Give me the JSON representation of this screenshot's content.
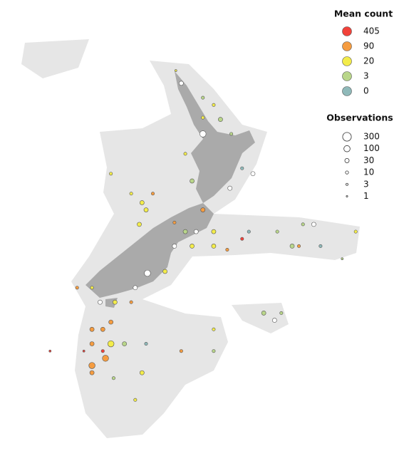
{
  "chart_data": {
    "type": "bubble_map",
    "xlim": [
      159.8,
      189.3
    ],
    "ylim": [
      -55.7,
      -30.5
    ],
    "color_legend": {
      "title": "Mean count",
      "levels": [
        405,
        90,
        20,
        3,
        0
      ],
      "colors": [
        "#f2423a",
        "#f59c40",
        "#f3ec4a",
        "#b9d68a",
        "#8fb9b9"
      ]
    },
    "size_legend": {
      "title": "Observations",
      "levels": [
        300,
        100,
        30,
        10,
        3,
        1
      ]
    },
    "lon": [
      172.8,
      173.2,
      174.8,
      175.6,
      176.1,
      174.8,
      174.8,
      176.9,
      177.7,
      178.5,
      176.8,
      173.5,
      174.0,
      168.0,
      169.5,
      170.3,
      170.6,
      170.1,
      171.1,
      174.8,
      173.5,
      174.3,
      175.6,
      178.2,
      180.3,
      182.2,
      183.0,
      186.1,
      172.7,
      174.0,
      175.6,
      176.6,
      181.4,
      181.9,
      183.5,
      185.1,
      170.7,
      172.0,
      169.8,
      165.5,
      166.6,
      168.3,
      169.5,
      167.2,
      179.3,
      180.1,
      180.6,
      166.6,
      167.4,
      168.0,
      166.6,
      168.0,
      169.0,
      170.6,
      166.6,
      167.6,
      166.6,
      163.5,
      166.0,
      170.3,
      168.2,
      169.8,
      175.6,
      175.6,
      173.2,
      167.4,
      172.7,
      177.7
    ],
    "lat": [
      -34.4,
      -35.1,
      -35.9,
      -36.3,
      -37.1,
      -37.9,
      -37.0,
      -37.9,
      -39.8,
      -40.1,
      -40.9,
      -39.0,
      -40.5,
      -40.1,
      -41.2,
      -41.7,
      -42.1,
      -42.9,
      -41.2,
      -42.1,
      -43.3,
      -43.3,
      -43.3,
      -43.3,
      -43.3,
      -42.9,
      -42.9,
      -43.3,
      -44.1,
      -44.1,
      -44.1,
      -44.3,
      -44.1,
      -44.1,
      -44.1,
      -44.8,
      -45.6,
      -45.5,
      -46.4,
      -46.4,
      -46.4,
      -47.2,
      -47.2,
      -47.2,
      -47.8,
      -48.2,
      -47.8,
      -48.7,
      -48.7,
      -48.3,
      -49.5,
      -49.5,
      -49.5,
      -49.5,
      -50.7,
      -50.3,
      -51.1,
      -49.9,
      -49.9,
      -51.1,
      -51.4,
      -52.6,
      -48.7,
      -49.9,
      -49.9,
      -49.9,
      -42.8,
      -43.7
    ],
    "mean": [
      20,
      0,
      3,
      20,
      3,
      0,
      20,
      3,
      0,
      0,
      0,
      20,
      3,
      20,
      20,
      20,
      20,
      20,
      90,
      90,
      3,
      0,
      20,
      0,
      3,
      3,
      0,
      20,
      0,
      20,
      20,
      90,
      3,
      90,
      0,
      3,
      0,
      20,
      0,
      90,
      20,
      20,
      90,
      0,
      3,
      0,
      3,
      90,
      90,
      90,
      90,
      20,
      3,
      0,
      90,
      90,
      90,
      405,
      405,
      20,
      3,
      20,
      20,
      3,
      90,
      405,
      90,
      405
    ],
    "obs": [
      3,
      30,
      10,
      10,
      30,
      100,
      10,
      10,
      10,
      30,
      30,
      10,
      30,
      10,
      10,
      30,
      30,
      30,
      10,
      30,
      30,
      30,
      30,
      10,
      10,
      10,
      30,
      10,
      30,
      30,
      30,
      10,
      30,
      10,
      10,
      3,
      100,
      30,
      30,
      10,
      10,
      30,
      10,
      30,
      30,
      30,
      10,
      30,
      30,
      30,
      30,
      100,
      30,
      10,
      100,
      100,
      30,
      3,
      3,
      30,
      10,
      10,
      10,
      10,
      10,
      10,
      10,
      10
    ]
  }
}
